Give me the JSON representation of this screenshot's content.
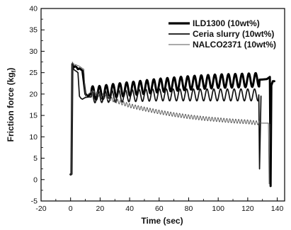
{
  "chart_data": {
    "type": "line",
    "xlabel": "Time (sec)",
    "ylabel": "Friction force (kgf)",
    "ylabel_main": "Friction force (kg",
    "ylabel_sub": "f",
    "ylabel_close": ")",
    "xlim": [
      -20,
      145
    ],
    "ylim": [
      -5,
      40
    ],
    "xticks": [
      -20,
      0,
      20,
      40,
      60,
      80,
      100,
      120,
      140
    ],
    "yticks": [
      -5,
      0,
      5,
      10,
      15,
      20,
      25,
      30,
      35,
      40
    ],
    "grid": false,
    "legend_position": "top-right",
    "series": [
      {
        "name": "ILD1300 (10wt%)",
        "color": "#000000",
        "style": "thick",
        "oscillation": {
          "amplitude": 1.6,
          "period": 4.6
        },
        "x": [
          0,
          0.6,
          1.2,
          2,
          3,
          4,
          5,
          6,
          8,
          10,
          12,
          14,
          20,
          30,
          40,
          50,
          60,
          70,
          80,
          90,
          100,
          110,
          120,
          125,
          130,
          133,
          135,
          135.5,
          136,
          137,
          138
        ],
        "y": [
          1.2,
          1.3,
          27.0,
          26.2,
          26.5,
          26.3,
          25.8,
          26.0,
          25.5,
          20.0,
          19.5,
          20.2,
          20.3,
          20.8,
          21.2,
          21.6,
          22.0,
          22.3,
          22.6,
          22.8,
          23.0,
          23.1,
          23.2,
          23.3,
          23.4,
          23.5,
          24.0,
          -1.5,
          22.0,
          23.0,
          23.0
        ]
      },
      {
        "name": "Ceria slurry (10wt%)",
        "color": "#111111",
        "style": "medium",
        "oscillation": {
          "amplitude": 1.4,
          "period": 4.6
        },
        "x": [
          0,
          0.6,
          1.4,
          2,
          3,
          4,
          5,
          6,
          7,
          8,
          9,
          10,
          12,
          20,
          30,
          40,
          50,
          60,
          70,
          80,
          90,
          100,
          110,
          120,
          125,
          127.5,
          128,
          129
        ],
        "y": [
          1.2,
          1.3,
          26.5,
          25.8,
          25.5,
          25.3,
          25.0,
          19.5,
          19.0,
          18.8,
          19.0,
          19.2,
          19.3,
          19.4,
          19.5,
          19.6,
          19.7,
          19.8,
          19.8,
          19.8,
          19.8,
          19.8,
          19.8,
          19.8,
          19.8,
          19.8,
          2.5,
          19.5
        ]
      },
      {
        "name": "NALCO2371 (10wt%)",
        "color": "#555555",
        "style": "thin",
        "oscillation": {
          "amplitude": 0.5,
          "period": 2.0
        },
        "x": [
          0,
          0.6,
          1.2,
          2,
          4,
          6,
          8,
          9,
          10,
          12,
          14,
          20,
          30,
          40,
          50,
          60,
          70,
          80,
          90,
          100,
          110,
          120,
          125,
          130,
          133,
          134,
          134.5,
          135
        ],
        "y": [
          1.2,
          1.3,
          27.5,
          27.0,
          26.8,
          26.5,
          26.0,
          25.8,
          19.5,
          20.0,
          20.5,
          19.8,
          18.5,
          17.3,
          16.5,
          15.8,
          15.2,
          14.7,
          14.3,
          14.0,
          13.7,
          13.5,
          13.3,
          13.2,
          13.2,
          13.2,
          -1.0,
          13.0
        ]
      }
    ]
  }
}
